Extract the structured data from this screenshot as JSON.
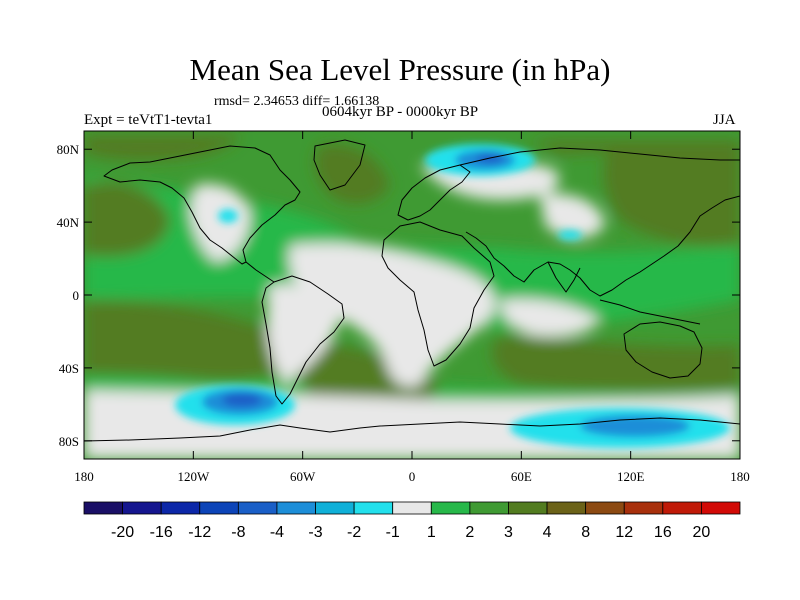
{
  "title": "Mean Sea Level Pressure (in hPa)",
  "stats_text": "rmsd= 2.34653 diff= 1.66138",
  "left_string": "Expt = teVtT1-tevta1",
  "center_string": "0604kyr BP - 0000kyr BP",
  "right_string": "JJA",
  "map": {
    "lon_range": [
      -180,
      180
    ],
    "lat_range": [
      -90,
      90
    ],
    "x_ticks": [
      {
        "value": -180,
        "label": "180"
      },
      {
        "value": -120,
        "label": "120W"
      },
      {
        "value": -60,
        "label": "60W"
      },
      {
        "value": 0,
        "label": "0"
      },
      {
        "value": 60,
        "label": "60E"
      },
      {
        "value": 120,
        "label": "120E"
      },
      {
        "value": 180,
        "label": "180"
      }
    ],
    "y_ticks": [
      {
        "value": 80,
        "label": "80N"
      },
      {
        "value": 40,
        "label": "40N"
      },
      {
        "value": 0,
        "label": "0"
      },
      {
        "value": -40,
        "label": "40S"
      },
      {
        "value": -80,
        "label": "80S"
      }
    ]
  },
  "colorbar": {
    "boundaries": [
      "-20",
      "-16",
      "-12",
      "-8",
      "-4",
      "-3",
      "-2",
      "-1",
      "1",
      "2",
      "3",
      "4",
      "8",
      "12",
      "16",
      "20"
    ],
    "colors": [
      "#1a0f66",
      "#15168f",
      "#0c27a8",
      "#0c44b8",
      "#1a5fc7",
      "#1d8ed8",
      "#10b0d8",
      "#23e0ec",
      "#e8e8e8",
      "#27b84a",
      "#3f9a33",
      "#527c20",
      "#6b6218",
      "#8c4a12",
      "#a8300c",
      "#c01a08",
      "#d20a06"
    ]
  }
}
